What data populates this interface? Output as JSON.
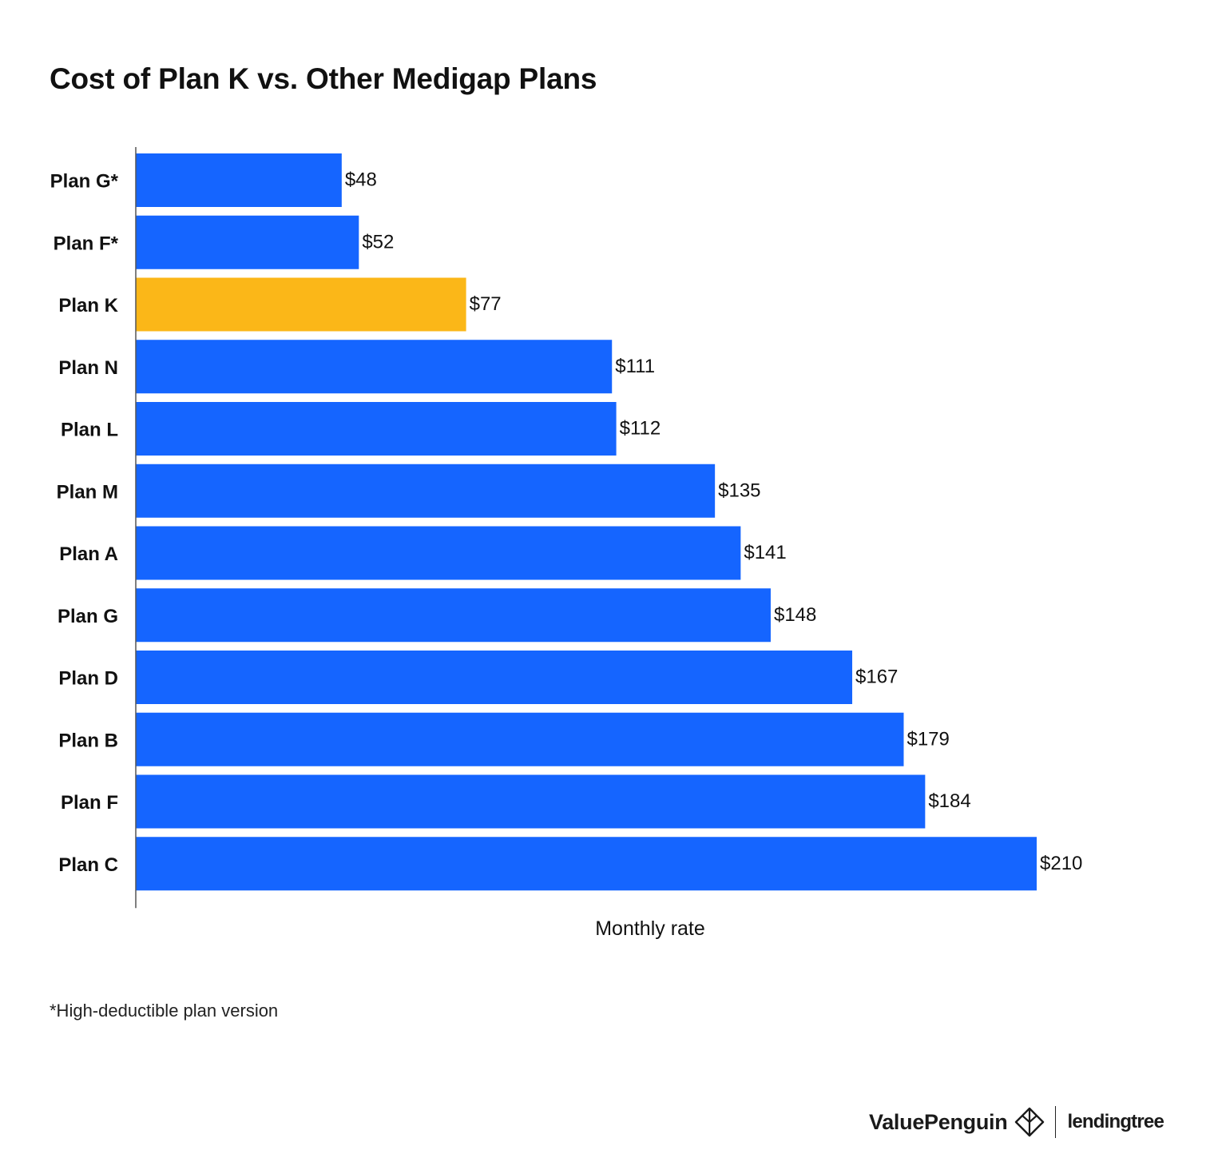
{
  "chart_data": {
    "type": "bar",
    "orientation": "horizontal",
    "title": "Cost of Plan K vs. Other Medigap Plans",
    "xlabel": "Monthly rate",
    "ylabel": "",
    "xlim": [
      0,
      210
    ],
    "grid": false,
    "legend": "none",
    "value_prefix": "$",
    "categories": [
      "Plan G*",
      "Plan F*",
      "Plan K",
      "Plan N",
      "Plan L",
      "Plan M",
      "Plan A",
      "Plan G",
      "Plan D",
      "Plan B",
      "Plan F",
      "Plan C"
    ],
    "values": [
      48,
      52,
      77,
      111,
      112,
      135,
      141,
      148,
      167,
      179,
      184,
      210
    ],
    "data_labels": [
      "$48",
      "$52",
      "$77",
      "$111",
      "$112",
      "$135",
      "$141",
      "$148",
      "$167",
      "$179",
      "$184",
      "$210"
    ],
    "highlight_category": "Plan K",
    "colors": {
      "bar": "#1565ff",
      "highlight": "#fbb718",
      "axis": "#555555",
      "text": "#111111"
    }
  },
  "footnote": "*High-deductible plan version",
  "branding": {
    "valuepenguin": "ValuePenguin",
    "lendingtree": "lendingtree",
    "logo_icon": "valuepenguin-mark-icon"
  }
}
